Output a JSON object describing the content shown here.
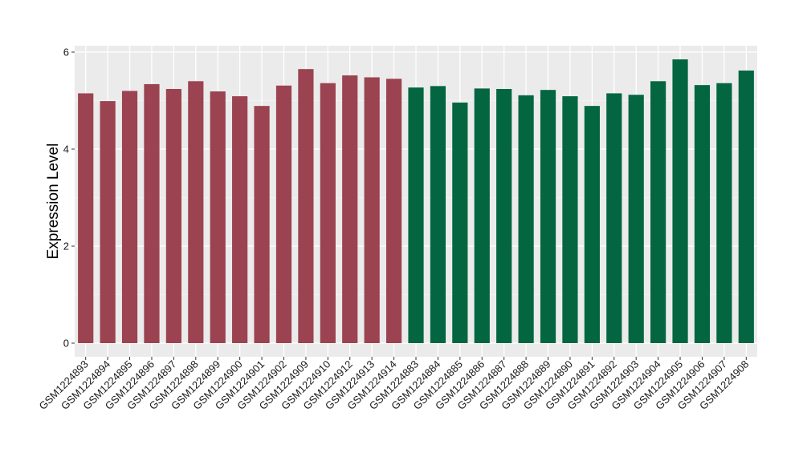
{
  "chart_data": {
    "type": "bar",
    "title": "",
    "xlabel": "",
    "ylabel": "Expression Level",
    "ylim": [
      0,
      6.05
    ],
    "yticks": [
      0,
      2,
      4,
      6
    ],
    "grid": true,
    "background": "#ebebeb",
    "group_colors": [
      "#9b4350",
      "#036641"
    ],
    "categories": [
      "GSM1224893",
      "GSM1224894",
      "GSM1224895",
      "GSM1224896",
      "GSM1224897",
      "GSM1224898",
      "GSM1224899",
      "GSM1224900",
      "GSM1224901",
      "GSM1224902",
      "GSM1224909",
      "GSM1224910",
      "GSM1224912",
      "GSM1224913",
      "GSM1224914",
      "GSM1224883",
      "GSM1224884",
      "GSM1224885",
      "GSM1224886",
      "GSM1224887",
      "GSM1224888",
      "GSM1224889",
      "GSM1224890",
      "GSM1224891",
      "GSM1224892",
      "GSM1224903",
      "GSM1224904",
      "GSM1224905",
      "GSM1224906",
      "GSM1224907",
      "GSM1224908"
    ],
    "values": [
      5.15,
      4.99,
      5.2,
      5.34,
      5.24,
      5.4,
      5.19,
      5.09,
      4.89,
      5.31,
      5.65,
      5.36,
      5.52,
      5.48,
      5.45,
      5.27,
      5.3,
      4.96,
      5.25,
      5.24,
      5.11,
      5.22,
      5.09,
      4.89,
      5.15,
      5.12,
      5.4,
      5.85,
      5.32,
      5.36,
      5.62
    ],
    "groups": [
      0,
      0,
      0,
      0,
      0,
      0,
      0,
      0,
      0,
      0,
      0,
      0,
      0,
      0,
      0,
      1,
      1,
      1,
      1,
      1,
      1,
      1,
      1,
      1,
      1,
      1,
      1,
      1,
      1,
      1,
      1
    ]
  }
}
